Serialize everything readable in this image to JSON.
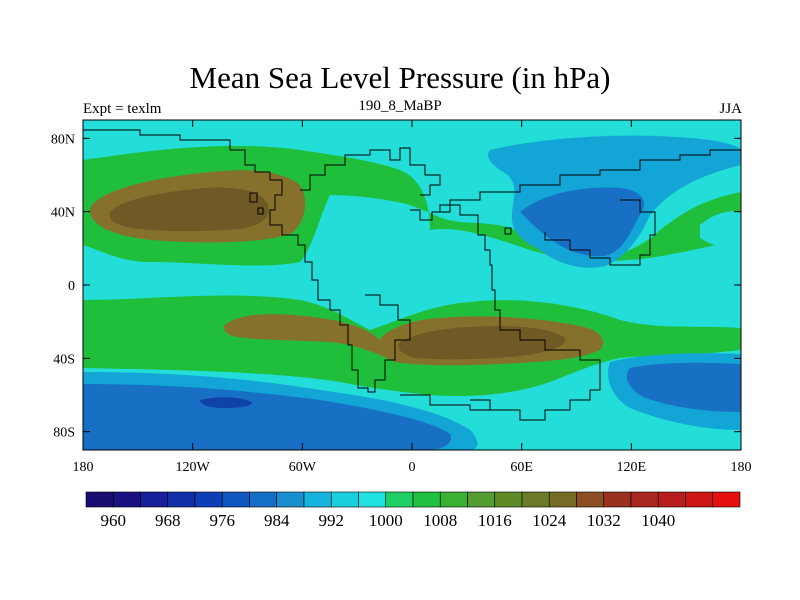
{
  "title": "Mean Sea Level Pressure (in hPa)",
  "subtitle_left": "Expt = texlm",
  "subtitle_center": "190_8_MaBP",
  "subtitle_right": "JJA",
  "colors": {
    "ocean_low": "#22ddd8",
    "green": "#1fbf3c",
    "olive": "#86712c",
    "olive_dark": "#6f5a26",
    "blue_mid": "#13a5d6",
    "blue": "#1870c4",
    "blue_dark": "#1043a8",
    "blue_deep": "#0b2a9c",
    "coast": "#000000"
  },
  "map": {
    "lon_range": [
      -180,
      180
    ],
    "lat_range": [
      -90,
      90
    ],
    "lon_ticks": [
      {
        "value": -180,
        "label": "180"
      },
      {
        "value": -120,
        "label": "120W"
      },
      {
        "value": -60,
        "label": "60W"
      },
      {
        "value": 0,
        "label": "0"
      },
      {
        "value": 60,
        "label": "60E"
      },
      {
        "value": 120,
        "label": "120E"
      },
      {
        "value": 180,
        "label": "180"
      }
    ],
    "lat_ticks": [
      {
        "value": 80,
        "label": "80N"
      },
      {
        "value": 40,
        "label": "40N"
      },
      {
        "value": 0,
        "label": "0"
      },
      {
        "value": -40,
        "label": "40S"
      },
      {
        "value": -80,
        "label": "80S"
      }
    ]
  },
  "colorbar": {
    "colors": [
      "#1a0f70",
      "#1a1080",
      "#15209a",
      "#102ea8",
      "#0d3eb5",
      "#0f57c0",
      "#136fc6",
      "#1a8fd0",
      "#16b4dc",
      "#17cfdf",
      "#20e2e0",
      "#1ed064",
      "#20c040",
      "#3ab035",
      "#529c30",
      "#5f8a28",
      "#6a7a26",
      "#776a24",
      "#8c4e22",
      "#9a3020",
      "#a82520",
      "#b81c1c",
      "#cc1616",
      "#e61010"
    ],
    "labels": [
      "960",
      "968",
      "976",
      "984",
      "992",
      "1000",
      "1008",
      "1016",
      "1024",
      "1032",
      "1040"
    ]
  }
}
